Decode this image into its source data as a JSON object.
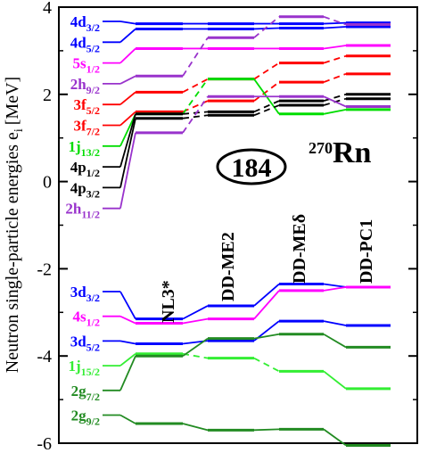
{
  "chart_data": {
    "type": "line",
    "ylabel": "Neutron  single-particle  energies  e",
    "ylabel_sub": "i",
    "ylabel_unit": "[MeV]",
    "ylim": [
      -6,
      4
    ],
    "yticks": [
      -6,
      -4,
      -2,
      0,
      2,
      4
    ],
    "models": [
      "NL3*",
      "DD-ME2",
      "DD-MEδ",
      "DD-PC1"
    ],
    "magic_number": "184",
    "nucleus": {
      "mass": "270",
      "symbol": "Rn"
    },
    "levels": [
      {
        "label": "4d",
        "sub": "3/2",
        "color": "#0000ff",
        "values": [
          3.62,
          3.62,
          3.62,
          3.64
        ],
        "dashed": [
          false,
          false,
          false
        ]
      },
      {
        "label": "4d",
        "sub": "5/2",
        "color": "#0000ff",
        "values": [
          3.5,
          3.5,
          3.52,
          3.55
        ],
        "dashed": [
          false,
          false,
          false
        ]
      },
      {
        "label": "5s",
        "sub": "1/2",
        "color": "#ff00ff",
        "values": [
          3.05,
          3.05,
          3.05,
          3.12
        ],
        "dashed": [
          false,
          false,
          false
        ]
      },
      {
        "label": "2h",
        "sub": "9/2",
        "color": "#9933cc",
        "values": [
          2.42,
          3.3,
          3.78,
          3.6
        ],
        "dashed": [
          true,
          true,
          true
        ]
      },
      {
        "label": "3f",
        "sub": "5/2",
        "color": "#ff0000",
        "values": [
          2.05,
          2.35,
          2.72,
          2.88
        ],
        "dashed": [
          true,
          true,
          true
        ]
      },
      {
        "label": "3f",
        "sub": "7/2",
        "color": "#ff0000",
        "values": [
          1.6,
          1.85,
          2.28,
          2.47
        ],
        "dashed": [
          true,
          true,
          true
        ]
      },
      {
        "label": "1j",
        "sub": "13/2",
        "color": "#00dd00",
        "values": [
          1.55,
          2.35,
          1.55,
          1.65
        ],
        "dashed": [
          true,
          false,
          false
        ]
      },
      {
        "label": "4p",
        "sub": "1/2",
        "color": "#000000",
        "values": [
          1.55,
          1.6,
          1.85,
          2.0
        ],
        "dashed": [
          true,
          true,
          true
        ]
      },
      {
        "label": "4p",
        "sub": "3/2",
        "color": "#000000",
        "values": [
          1.45,
          1.52,
          1.75,
          1.9
        ],
        "dashed": [
          true,
          true,
          true
        ]
      },
      {
        "label": "2h",
        "sub": "11/2",
        "color": "#9933cc",
        "values": [
          1.12,
          1.95,
          1.95,
          1.72
        ],
        "dashed": [
          true,
          false,
          false
        ]
      },
      {
        "label": "3d",
        "sub": "3/2",
        "color": "#0000ff",
        "values": [
          -3.15,
          -2.85,
          -2.35,
          -2.42
        ],
        "dashed": [
          false,
          false,
          false
        ]
      },
      {
        "label": "4s",
        "sub": "1/2",
        "color": "#ff00ff",
        "values": [
          -3.25,
          -3.15,
          -2.5,
          -2.42
        ],
        "dashed": [
          false,
          false,
          false
        ]
      },
      {
        "label": "3d",
        "sub": "5/2",
        "color": "#0000ff",
        "values": [
          -3.72,
          -3.65,
          -3.2,
          -3.3
        ],
        "dashed": [
          false,
          false,
          false
        ]
      },
      {
        "label": "1j",
        "sub": "15/2",
        "color": "#33ee33",
        "values": [
          -3.95,
          -4.05,
          -4.35,
          -4.75
        ],
        "dashed": [
          true,
          true,
          false
        ]
      },
      {
        "label": "2g",
        "sub": "7/2",
        "color": "#228b22",
        "values": [
          -4.0,
          -3.6,
          -3.5,
          -3.8
        ],
        "dashed": [
          false,
          false,
          false
        ]
      },
      {
        "label": "2g",
        "sub": "9/2",
        "color": "#228b22",
        "values": [
          -5.55,
          -5.7,
          -5.68,
          -6.05
        ],
        "dashed": [
          false,
          false,
          false
        ]
      }
    ],
    "left_segment": {
      "x_from": 0.5,
      "x_to": 1,
      "style": "solid"
    }
  }
}
